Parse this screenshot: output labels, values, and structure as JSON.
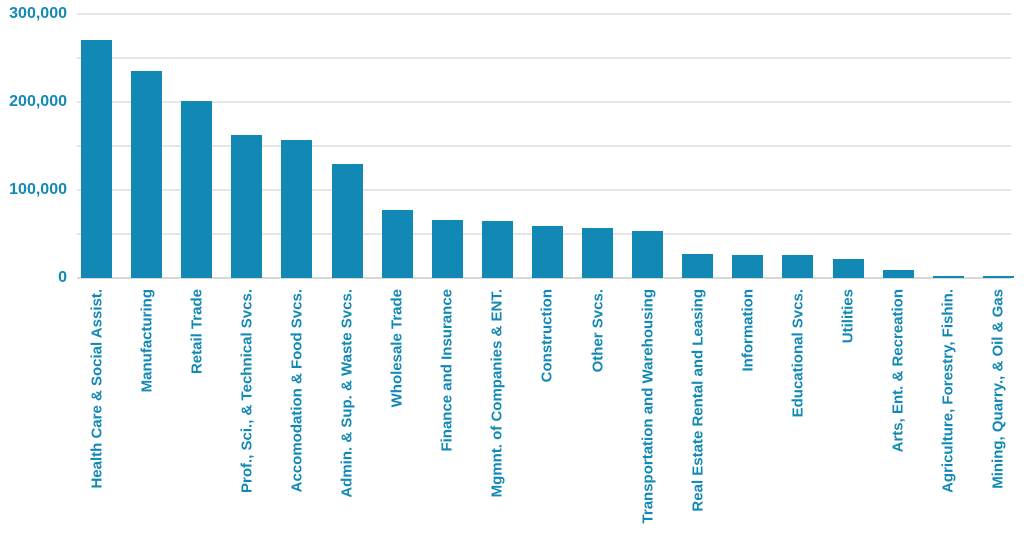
{
  "chart_data": {
    "type": "bar",
    "title": "",
    "xlabel": "",
    "ylabel": "",
    "categories": [
      "Health Care & Social Assist.",
      "Manufacturing",
      "Retail Trade",
      "Prof., Sci., & Technical Svcs.",
      "Accomodation & Food Svcs.",
      "Admin. & Sup. & Waste Svcs.",
      "Wholesale Trade",
      "Finance and Insurance",
      "Mgmnt. of Companies & ENT.",
      "Construction",
      "Other Svcs.",
      "Transportation and Warehousing",
      "Real Estate Rental and Leasing",
      "Information",
      "Educational Svcs.",
      "Utilities",
      "Arts, Ent. & Recreation",
      "Agriculture, Forestry, Fishin.",
      "Mining, Quarry., & Oil & Gas"
    ],
    "values": [
      270000,
      235000,
      201000,
      162000,
      157000,
      130000,
      77000,
      66000,
      65000,
      59000,
      57000,
      53000,
      27000,
      26000,
      26000,
      22000,
      9000,
      2000,
      2000
    ],
    "ylim": [
      0,
      300000
    ],
    "yticks": [
      {
        "value": 0,
        "label": "0"
      },
      {
        "value": 100000,
        "label": "100,000"
      },
      {
        "value": 200000,
        "label": "200,000"
      },
      {
        "value": 300000,
        "label": "300,000"
      }
    ],
    "gridline_step": 50000,
    "grid": true,
    "legend_position": "none",
    "colors": {
      "bar": "#1289b4",
      "tick_text": "#1289b4",
      "gridline": "#e6e6e6",
      "baseline": "#d8d8d8",
      "background": "#ffffff"
    }
  }
}
